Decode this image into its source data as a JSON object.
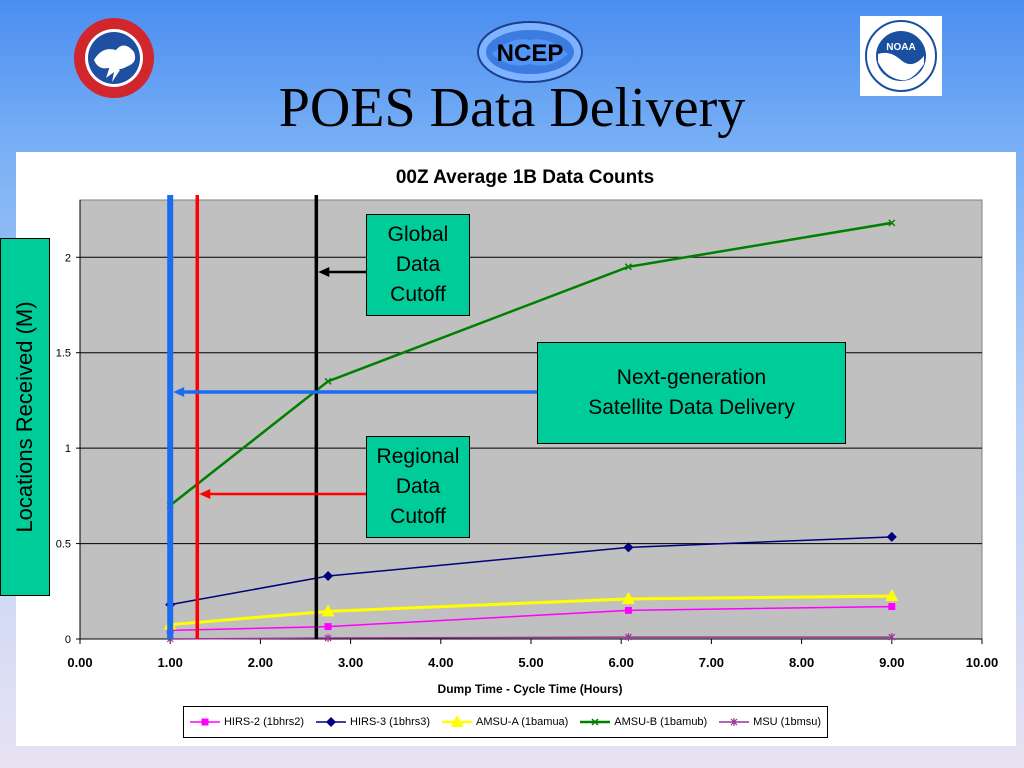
{
  "slide": {
    "title": "POES Data Delivery",
    "logos": {
      "nws": "National Weather Service",
      "ncep": "NCEP",
      "noaa": "NOAA"
    }
  },
  "callouts": {
    "global": [
      "Global",
      "Data",
      "Cutoff"
    ],
    "regional": [
      "Regional",
      "Data",
      "Cutoff"
    ],
    "nextgen": [
      "Next-generation",
      "Satellite Data Delivery"
    ]
  },
  "vertical_lines": {
    "blue_x": 1.0,
    "red_x": 1.3,
    "black_x": 2.62
  },
  "colors": {
    "hirs2": "#ff00ff",
    "hirs3": "#000080",
    "amsua": "#ffff00",
    "amsub": "#008000",
    "msu": "#993399",
    "blue_line": "#1a6cf0",
    "red_line": "#ff0000",
    "callout_fill": "#00cc99",
    "plot_bg": "#c0c0c0"
  },
  "chart_data": {
    "type": "line",
    "title": "00Z Average 1B Data Counts",
    "xlabel": "Dump Time - Cycle Time (Hours)",
    "ylabel": "Locations Received (M)",
    "xlim": [
      0,
      10
    ],
    "ylim": [
      0,
      2.3
    ],
    "xticks": [
      "0.00",
      "1.00",
      "2.00",
      "3.00",
      "4.00",
      "5.00",
      "6.00",
      "7.00",
      "8.00",
      "9.00",
      "10.00"
    ],
    "yticks": [
      "0",
      "0.5",
      "1",
      "1.5",
      "2"
    ],
    "grid": true,
    "legend_position": "bottom",
    "series": [
      {
        "name": "HIRS-2 (1bhrs2)",
        "marker": "square",
        "x": [
          1.0,
          2.75,
          6.08,
          9.0
        ],
        "y": [
          0.045,
          0.065,
          0.15,
          0.17
        ]
      },
      {
        "name": "HIRS-3 (1bhrs3)",
        "marker": "diamond",
        "x": [
          1.0,
          2.75,
          6.08,
          9.0
        ],
        "y": [
          0.18,
          0.33,
          0.48,
          0.535
        ]
      },
      {
        "name": "AMSU-A (1bamua)",
        "marker": "triangle",
        "x": [
          1.0,
          2.75,
          6.08,
          9.0
        ],
        "y": [
          0.075,
          0.145,
          0.21,
          0.225
        ]
      },
      {
        "name": "AMSU-B (1bamub)",
        "marker": "x",
        "x": [
          1.0,
          2.75,
          6.08,
          9.0
        ],
        "y": [
          0.7,
          1.35,
          1.95,
          2.18
        ]
      },
      {
        "name": "MSU (1bmsu)",
        "marker": "star",
        "x": [
          1.0,
          2.75,
          6.08,
          9.0
        ],
        "y": [
          0.0,
          0.005,
          0.01,
          0.01
        ]
      }
    ]
  }
}
